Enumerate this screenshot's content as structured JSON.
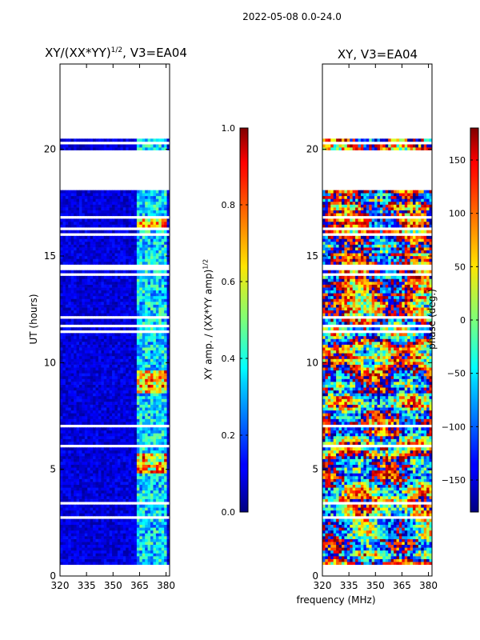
{
  "figure_title": "2022-05-08 0.0-24.0",
  "chart_data": [
    {
      "type": "heatmap",
      "title_main": "XY/(XX*YY)",
      "title_sup": "1/2",
      "title_rest": ", V3=EA04",
      "xlabel": "",
      "ylabel": "UT (hours)",
      "xlim": [
        320,
        382
      ],
      "ylim": [
        0,
        24
      ],
      "xticks": [
        320,
        335,
        350,
        365,
        380
      ],
      "yticks": [
        0,
        5,
        10,
        15,
        20
      ],
      "colorbar": {
        "label_main": "XY amp. / (XX*YY amp)",
        "label_sup": "1/2",
        "range": [
          0.0,
          1.0
        ],
        "ticks": [
          "0.0",
          "0.2",
          "0.4",
          "0.6",
          "0.8",
          "1.0"
        ],
        "tick_values": [
          0.0,
          0.2,
          0.4,
          0.6,
          0.8,
          1.0
        ]
      },
      "data_coverage_hours": [
        [
          0.4,
          20.5
        ]
      ],
      "gap_hours": [
        [
          18.1,
          20.0
        ],
        [
          20.25,
          20.35
        ]
      ],
      "active_band_mhz": [
        364,
        381
      ],
      "peak_value_approx": 0.9
    },
    {
      "type": "heatmap",
      "title_main": "XY, V3=EA04",
      "xlabel": "frequency (MHz)",
      "ylabel": "",
      "xlim": [
        320,
        382
      ],
      "ylim": [
        0,
        24
      ],
      "xticks": [
        320,
        335,
        350,
        365,
        380
      ],
      "yticks": [
        0,
        5,
        10,
        15,
        20
      ],
      "colorbar": {
        "label_main": "phase (deg.)",
        "range": [
          -180,
          180
        ],
        "ticks": [
          "−150",
          "−100",
          "−50",
          "0",
          "50",
          "100",
          "150"
        ],
        "tick_values": [
          -150,
          -100,
          -50,
          0,
          50,
          100,
          150
        ]
      },
      "data_coverage_hours": [
        [
          0.4,
          20.5
        ]
      ],
      "gap_hours": [
        [
          18.1,
          20.0
        ],
        [
          20.25,
          20.35
        ]
      ]
    }
  ]
}
